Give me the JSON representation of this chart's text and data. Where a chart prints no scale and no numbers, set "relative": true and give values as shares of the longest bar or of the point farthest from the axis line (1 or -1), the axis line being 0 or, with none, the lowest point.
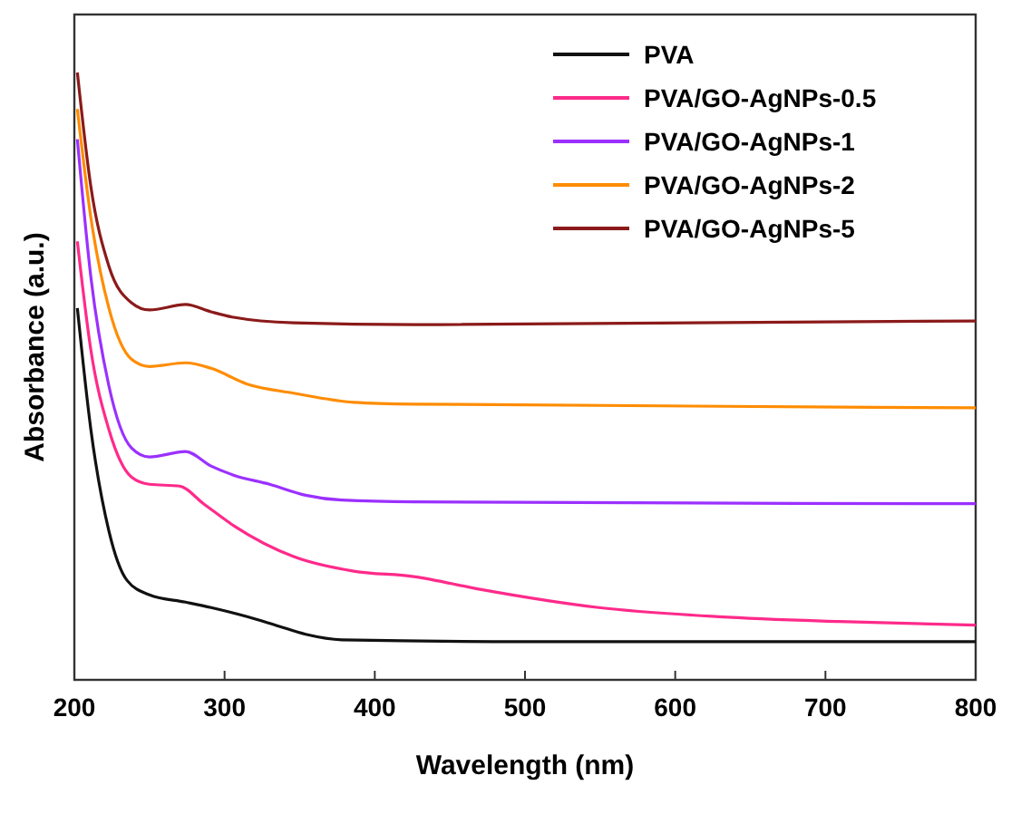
{
  "chart_data": {
    "type": "line",
    "xlabel": "Wavelength (nm)",
    "ylabel": "Absorbance (a.u.)",
    "relative": true,
    "xlim": [
      200,
      800
    ],
    "xticks": [
      200,
      300,
      400,
      500,
      600,
      700,
      800
    ],
    "legend": "top right",
    "grid": false,
    "series": [
      {
        "name": "PVA",
        "color": "#111111",
        "x": [
          202,
          211,
          223,
          235,
          250,
          274,
          291,
          315,
          334,
          354,
          378,
          500,
          800
        ],
        "values": [
          0.612,
          0.412,
          0.245,
          0.164,
          0.14,
          0.128,
          0.119,
          0.104,
          0.09,
          0.075,
          0.066,
          0.063,
          0.063
        ]
      },
      {
        "name": "PVA/GO-AgNPs-0.5",
        "color": "#ff2a8a",
        "x": [
          202,
          211,
          223,
          238,
          250,
          270,
          286,
          306,
          346,
          386,
          426,
          470,
          549,
          629,
          709,
          800
        ],
        "values": [
          0.722,
          0.543,
          0.412,
          0.334,
          0.322,
          0.319,
          0.29,
          0.254,
          0.203,
          0.179,
          0.17,
          0.149,
          0.119,
          0.104,
          0.096,
          0.09
        ]
      },
      {
        "name": "PVA/GO-AgNPs-1",
        "color": "#9b30ff",
        "x": [
          202,
          211,
          223,
          238,
          250,
          274,
          291,
          306,
          330,
          354,
          378,
          426,
          800
        ],
        "values": [
          0.89,
          0.663,
          0.484,
          0.382,
          0.367,
          0.376,
          0.352,
          0.337,
          0.322,
          0.304,
          0.296,
          0.293,
          0.29
        ]
      },
      {
        "name": "PVA/GO-AgNPs-2",
        "color": "#ff8c00",
        "x": [
          202,
          211,
          223,
          238,
          250,
          274,
          291,
          315,
          346,
          386,
          426,
          800
        ],
        "values": [
          0.94,
          0.761,
          0.612,
          0.528,
          0.516,
          0.522,
          0.513,
          0.487,
          0.472,
          0.457,
          0.454,
          0.448
        ]
      },
      {
        "name": "PVA/GO-AgNPs-5",
        "color": "#8b1a1a",
        "x": [
          202,
          211,
          223,
          238,
          250,
          274,
          291,
          306,
          346,
          426,
          800
        ],
        "values": [
          1,
          0.812,
          0.681,
          0.621,
          0.609,
          0.618,
          0.606,
          0.597,
          0.588,
          0.585,
          0.591
        ]
      }
    ]
  }
}
